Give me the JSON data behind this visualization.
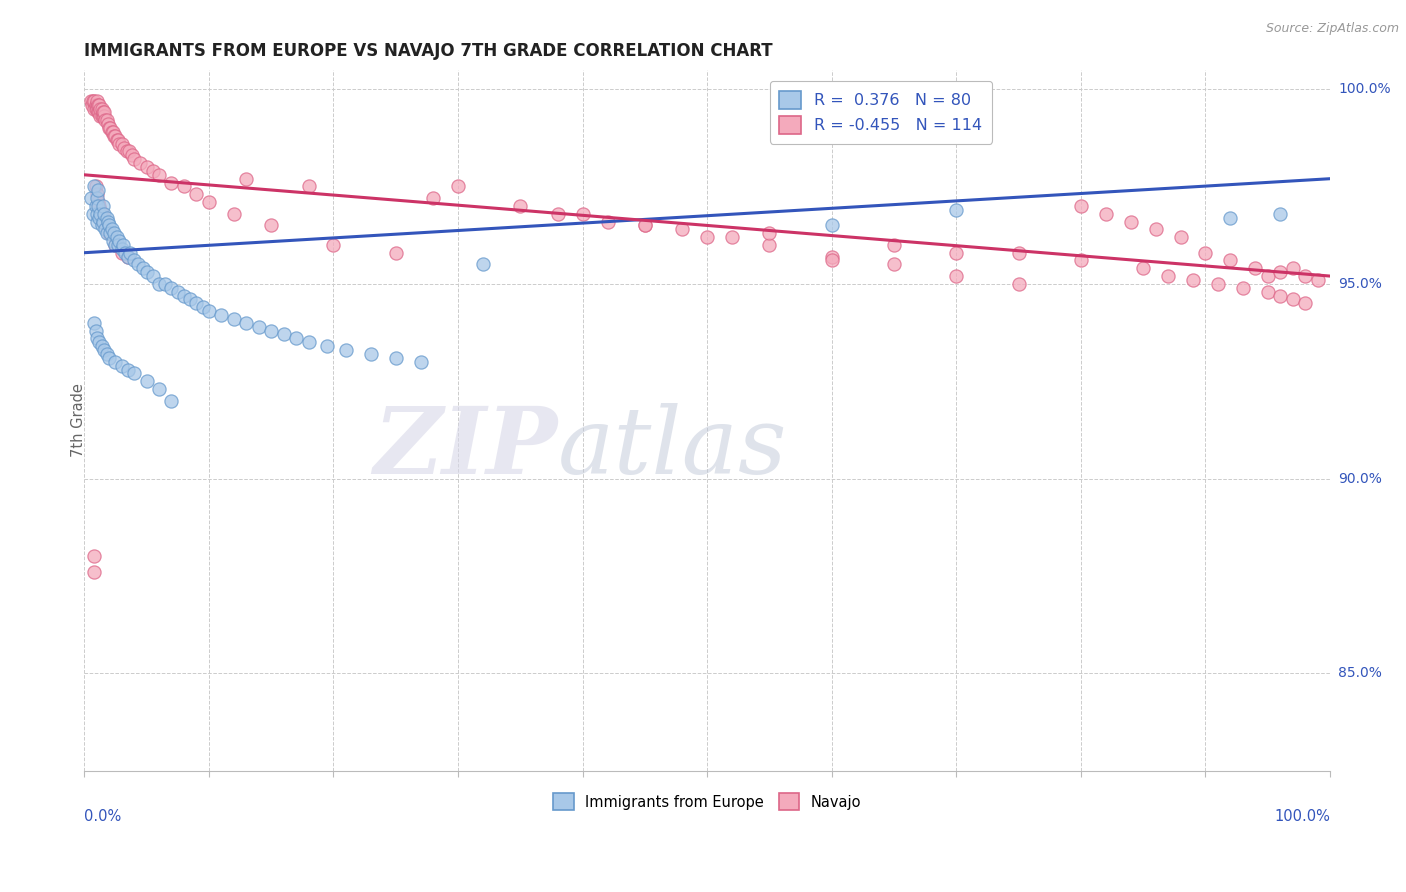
{
  "title": "IMMIGRANTS FROM EUROPE VS NAVAJO 7TH GRADE CORRELATION CHART",
  "source_text": "Source: ZipAtlas.com",
  "ylabel": "7th Grade",
  "blue_R": 0.376,
  "blue_N": 80,
  "pink_R": -0.455,
  "pink_N": 114,
  "blue_label": "Immigrants from Europe",
  "pink_label": "Navajo",
  "blue_face_color": "#A8C8E8",
  "blue_edge_color": "#6699CC",
  "pink_face_color": "#F4AABC",
  "pink_edge_color": "#DD6688",
  "blue_line_color": "#3355BB",
  "pink_line_color": "#CC3366",
  "right_ytick_labels": [
    "85.0%",
    "90.0%",
    "95.0%",
    "100.0%"
  ],
  "right_ytick_positions": [
    0.85,
    0.9,
    0.95,
    1.0
  ],
  "y_min": 0.825,
  "y_max": 1.005,
  "x_min": 0.0,
  "x_max": 1.0,
  "watermark_zip": "ZIP",
  "watermark_atlas": "atlas",
  "watermark_color_zip": "#D8D8E8",
  "watermark_color_atlas": "#C0C8D8",
  "blue_line_x": [
    0.0,
    1.0
  ],
  "blue_line_y": [
    0.958,
    0.977
  ],
  "pink_line_x": [
    0.0,
    1.0
  ],
  "pink_line_y": [
    0.978,
    0.952
  ],
  "blue_x": [
    0.005,
    0.007,
    0.008,
    0.009,
    0.01,
    0.01,
    0.01,
    0.011,
    0.011,
    0.012,
    0.013,
    0.014,
    0.015,
    0.015,
    0.016,
    0.017,
    0.018,
    0.018,
    0.019,
    0.02,
    0.021,
    0.022,
    0.023,
    0.024,
    0.025,
    0.026,
    0.027,
    0.028,
    0.03,
    0.031,
    0.033,
    0.035,
    0.037,
    0.04,
    0.043,
    0.047,
    0.05,
    0.055,
    0.06,
    0.065,
    0.07,
    0.075,
    0.08,
    0.085,
    0.09,
    0.095,
    0.1,
    0.11,
    0.12,
    0.13,
    0.14,
    0.15,
    0.16,
    0.17,
    0.18,
    0.195,
    0.21,
    0.23,
    0.25,
    0.27,
    0.008,
    0.009,
    0.01,
    0.012,
    0.014,
    0.016,
    0.018,
    0.02,
    0.025,
    0.03,
    0.035,
    0.04,
    0.05,
    0.06,
    0.07,
    0.32,
    0.6,
    0.7,
    0.92,
    0.96
  ],
  "blue_y": [
    0.972,
    0.968,
    0.975,
    0.97,
    0.966,
    0.972,
    0.968,
    0.974,
    0.97,
    0.967,
    0.968,
    0.965,
    0.97,
    0.966,
    0.968,
    0.964,
    0.967,
    0.963,
    0.966,
    0.965,
    0.963,
    0.964,
    0.961,
    0.963,
    0.96,
    0.962,
    0.96,
    0.961,
    0.959,
    0.96,
    0.958,
    0.957,
    0.958,
    0.956,
    0.955,
    0.954,
    0.953,
    0.952,
    0.95,
    0.95,
    0.949,
    0.948,
    0.947,
    0.946,
    0.945,
    0.944,
    0.943,
    0.942,
    0.941,
    0.94,
    0.939,
    0.938,
    0.937,
    0.936,
    0.935,
    0.934,
    0.933,
    0.932,
    0.931,
    0.93,
    0.94,
    0.938,
    0.936,
    0.935,
    0.934,
    0.933,
    0.932,
    0.931,
    0.93,
    0.929,
    0.928,
    0.927,
    0.925,
    0.923,
    0.92,
    0.955,
    0.965,
    0.969,
    0.967,
    0.968
  ],
  "pink_x": [
    0.005,
    0.006,
    0.007,
    0.008,
    0.008,
    0.009,
    0.009,
    0.01,
    0.01,
    0.01,
    0.011,
    0.011,
    0.012,
    0.012,
    0.013,
    0.013,
    0.014,
    0.014,
    0.015,
    0.015,
    0.016,
    0.016,
    0.017,
    0.018,
    0.019,
    0.02,
    0.021,
    0.022,
    0.023,
    0.024,
    0.025,
    0.026,
    0.027,
    0.028,
    0.03,
    0.032,
    0.034,
    0.036,
    0.038,
    0.04,
    0.045,
    0.05,
    0.055,
    0.06,
    0.07,
    0.08,
    0.09,
    0.1,
    0.12,
    0.15,
    0.2,
    0.25,
    0.3,
    0.35,
    0.4,
    0.45,
    0.5,
    0.55,
    0.6,
    0.65,
    0.7,
    0.75,
    0.8,
    0.82,
    0.84,
    0.86,
    0.88,
    0.9,
    0.92,
    0.94,
    0.95,
    0.96,
    0.97,
    0.98,
    0.99,
    0.6,
    0.7,
    0.8,
    0.85,
    0.87,
    0.89,
    0.91,
    0.93,
    0.95,
    0.96,
    0.97,
    0.98,
    0.65,
    0.75,
    0.45,
    0.55,
    0.48,
    0.52,
    0.38,
    0.42,
    0.28,
    0.18,
    0.13,
    0.008,
    0.008,
    0.009,
    0.01,
    0.011,
    0.012,
    0.013,
    0.014,
    0.015,
    0.016,
    0.018,
    0.02,
    0.025,
    0.03,
    0.035
  ],
  "pink_y": [
    0.997,
    0.996,
    0.997,
    0.995,
    0.997,
    0.995,
    0.996,
    0.996,
    0.997,
    0.995,
    0.994,
    0.996,
    0.994,
    0.996,
    0.993,
    0.995,
    0.993,
    0.995,
    0.993,
    0.994,
    0.993,
    0.994,
    0.992,
    0.992,
    0.991,
    0.99,
    0.99,
    0.989,
    0.989,
    0.988,
    0.988,
    0.987,
    0.987,
    0.986,
    0.986,
    0.985,
    0.984,
    0.984,
    0.983,
    0.982,
    0.981,
    0.98,
    0.979,
    0.978,
    0.976,
    0.975,
    0.973,
    0.971,
    0.968,
    0.965,
    0.96,
    0.958,
    0.975,
    0.97,
    0.968,
    0.965,
    0.962,
    0.96,
    0.957,
    0.955,
    0.952,
    0.95,
    0.97,
    0.968,
    0.966,
    0.964,
    0.962,
    0.958,
    0.956,
    0.954,
    0.952,
    0.953,
    0.954,
    0.952,
    0.951,
    0.956,
    0.958,
    0.956,
    0.954,
    0.952,
    0.951,
    0.95,
    0.949,
    0.948,
    0.947,
    0.946,
    0.945,
    0.96,
    0.958,
    0.965,
    0.963,
    0.964,
    0.962,
    0.968,
    0.966,
    0.972,
    0.975,
    0.977,
    0.876,
    0.88,
    0.975,
    0.973,
    0.971,
    0.97,
    0.969,
    0.968,
    0.967,
    0.966,
    0.964,
    0.963,
    0.96,
    0.958,
    0.957
  ]
}
